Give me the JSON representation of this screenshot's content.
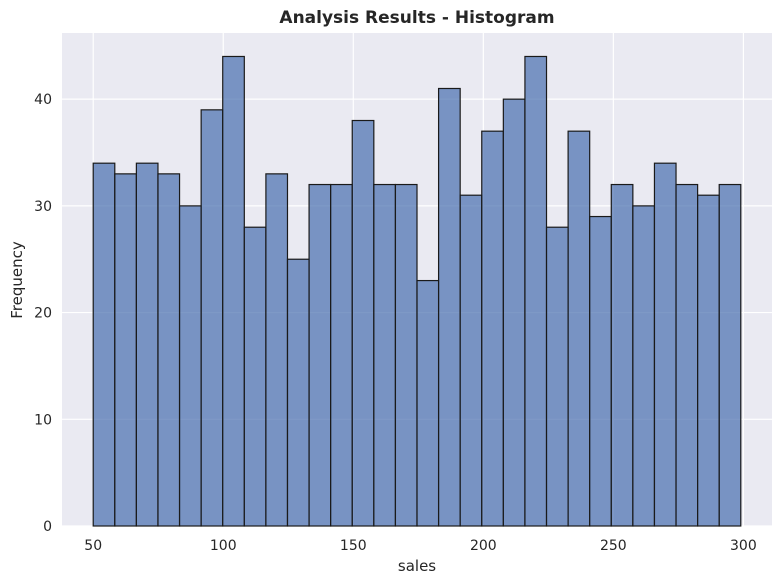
{
  "chart_data": {
    "type": "bar",
    "title": "Analysis Results - Histogram",
    "xlabel": "sales",
    "ylabel": "Frequency",
    "xlim": [
      38,
      311
    ],
    "ylim": [
      0,
      46.2
    ],
    "bin_start": 50,
    "bin_end": 299,
    "bins": 30,
    "values": [
      34,
      33,
      34,
      33,
      30,
      39,
      44,
      28,
      33,
      25,
      32,
      32,
      38,
      32,
      32,
      23,
      41,
      31,
      37,
      40,
      44,
      28,
      37,
      29,
      32,
      30,
      34,
      32,
      31,
      32
    ],
    "x_ticks": [
      50,
      100,
      150,
      200,
      250,
      300
    ],
    "y_ticks": [
      0,
      10,
      20,
      30,
      40
    ],
    "grid": true,
    "bar_color": "#4c72b0",
    "edge_color": "#1a1a1a",
    "background_color": "#eaeaf2"
  }
}
